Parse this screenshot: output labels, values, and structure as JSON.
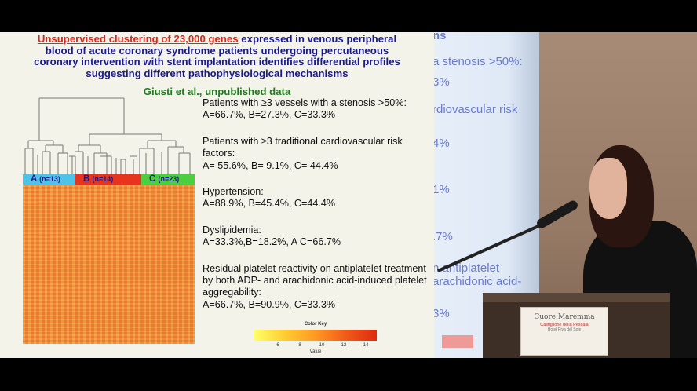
{
  "slide": {
    "title_highlight": "Unsupervised clustering of 23,000 genes",
    "title_line1_rest": " expressed in venous peripheral",
    "title_line2": "blood of acute coronary syndrome patients undergoing percutaneous",
    "title_line3": "coronary intervention with stent implantation identifies differential profiles",
    "title_line4": "suggesting different pathophysiological mechanisms",
    "citation": "Giusti et al., unpublished data",
    "clusters": [
      {
        "letter": "A",
        "n": "(n=13)",
        "color": "#4fc3e6"
      },
      {
        "letter": "B",
        "n": "(n=14)",
        "color": "#e8331f"
      },
      {
        "letter": "C",
        "n": "(n=23)",
        "color": "#4ccf3e"
      }
    ],
    "findings": [
      {
        "heading": "Patients with ≥3 vessels with a stenosis >50%:",
        "values": "A=66.7%, B=27.3%, C=33.3%"
      },
      {
        "heading": "Patients with ≥3 traditional cardiovascular risk factors:",
        "values": "A= 55.6%, B= 9.1%, C= 44.4%"
      },
      {
        "heading": "Hypertension:",
        "values": "A=88.9%, B=45.4%, C=44.4%"
      },
      {
        "heading": "Dyslipidemia:",
        "values": "A=33.3%,B=18.2%, A C=66.7%"
      },
      {
        "heading": "Residual platelet reactivity on antiplatelet treatment by both ADP- and arachidonic acid-induced platelet aggregability:",
        "values": "A=66.7%, B=90.9%, C=33.3%"
      }
    ],
    "color_key": {
      "title": "Color Key",
      "ticks": [
        "6",
        "8",
        "10",
        "12",
        "14"
      ],
      "xlabel": "Value",
      "colors": [
        "#ffff66",
        "#ffcc33",
        "#ff9922",
        "#f05a1a",
        "#e02a10"
      ]
    }
  },
  "photo": {
    "screen_fragments": [
      "ns",
      "a stenosis >50%:",
      "3%",
      "rdiovascular risk",
      "4%",
      "1%",
      ".7%",
      "n antiplatelet",
      "arachidonic acid-",
      "3%"
    ],
    "podium_title": "Cuore Maremma",
    "podium_subtitle": "Castiglione della Pescaia",
    "podium_subtitle2": "Hotel Riva del Sole"
  }
}
